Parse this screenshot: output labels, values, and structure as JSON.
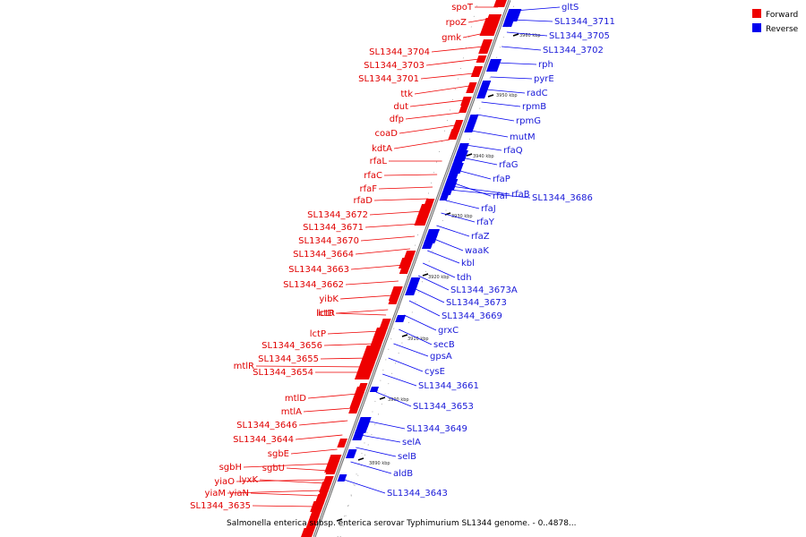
{
  "caption": "Salmonella enterica subsp. enterica serovar Typhimurium SL1344 genome. - 0..4878...",
  "legend": [
    {
      "label": "Forward",
      "color": "#ee0000"
    },
    {
      "label": "Reverse",
      "color": "#0000ee"
    }
  ],
  "colors": {
    "forward": "#ee0000",
    "reverse": "#0000ee",
    "backbone": "#777777"
  },
  "ticks": [
    "3960 kbp",
    "3950 kbp",
    "3940 kbp",
    "3930 kbp",
    "3920 kbp",
    "3910 kbp",
    "3900 kbp",
    "3890 kbp"
  ],
  "forward_genes": [
    "spoT",
    "rpoZ",
    "gmk",
    "SL1344_3704",
    "SL1344_3703",
    "SL1344_3701",
    "ttk",
    "dut",
    "dfp",
    "coaD",
    "kdtA",
    "rfaL",
    "rfaC",
    "rfaF",
    "rfaD",
    "SL1344_3672",
    "SL1344_3671",
    "SL1344_3670",
    "SL1344_3664",
    "SL1344_3663",
    "SL1344_3662",
    "yibK",
    "lctR",
    "lctD",
    "lctP",
    "SL1344_3656",
    "SL1344_3655",
    "mtlR",
    "SL1344_3654",
    "mtlD",
    "mtlA",
    "SL1344_3646",
    "SL1344_3644",
    "sgbE",
    "sgbH",
    "sgbU",
    "yiaO",
    "lyxK",
    "yiaM",
    "yiaN",
    "SL1344_3635"
  ],
  "reverse_genes": [
    "gltS",
    "SL1344_3711",
    "SL1344_3705",
    "SL1344_3702",
    "rph",
    "pyrE",
    "radC",
    "rpmB",
    "rpmG",
    "mutM",
    "rfaQ",
    "rfaG",
    "rfaP",
    "rfaI",
    "rfaB",
    "SL1344_3686",
    "rfaJ",
    "rfaY",
    "rfaZ",
    "waaK",
    "kbl",
    "tdh",
    "SL1344_3673A",
    "SL1344_3673",
    "SL1344_3669",
    "grxC",
    "secB",
    "gpsA",
    "cysE",
    "SL1344_3661",
    "SL1344_3653",
    "SL1344_3649",
    "selA",
    "selB",
    "aldB",
    "SL1344_3643"
  ]
}
